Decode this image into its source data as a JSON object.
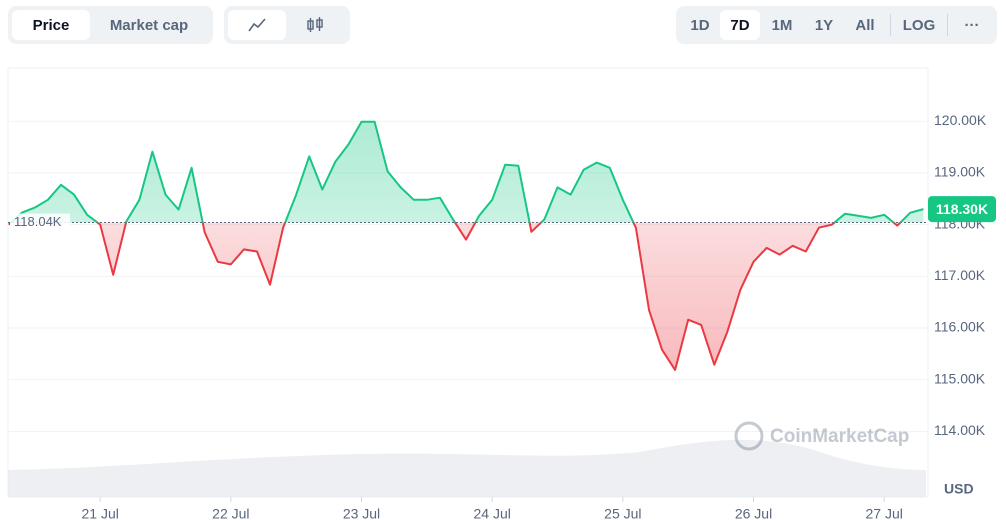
{
  "controls": {
    "tabs": [
      "Price",
      "Market cap"
    ],
    "ranges": [
      "1D",
      "7D",
      "1M",
      "1Y",
      "All"
    ],
    "log": "LOG",
    "more": "···"
  },
  "chart_data": {
    "type": "line",
    "x": [
      20.3,
      20.4,
      20.5,
      20.6,
      20.7,
      20.8,
      20.9,
      21.0,
      21.1,
      21.2,
      21.3,
      21.4,
      21.5,
      21.6,
      21.7,
      21.8,
      21.9,
      22.0,
      22.1,
      22.2,
      22.3,
      22.4,
      22.5,
      22.6,
      22.7,
      22.8,
      22.9,
      23.0,
      23.1,
      23.2,
      23.3,
      23.4,
      23.5,
      23.6,
      23.7,
      23.8,
      23.9,
      24.0,
      24.1,
      24.2,
      24.3,
      24.4,
      24.5,
      24.6,
      24.7,
      24.8,
      24.9,
      25.0,
      25.1,
      25.2,
      25.3,
      25.4,
      25.5,
      25.6,
      25.7,
      25.8,
      25.9,
      26.0,
      26.1,
      26.2,
      26.3,
      26.4,
      26.5,
      26.6,
      26.7,
      26.8,
      26.9,
      27.0,
      27.1,
      27.2,
      27.3
    ],
    "values": [
      118000,
      118230,
      118330,
      118480,
      118770,
      118580,
      118190,
      118000,
      117030,
      118060,
      118480,
      119410,
      118580,
      118290,
      119100,
      117850,
      117280,
      117230,
      117520,
      117480,
      116840,
      117940,
      118580,
      119320,
      118680,
      119220,
      119550,
      119990,
      119990,
      119030,
      118720,
      118480,
      118480,
      118520,
      118100,
      117710,
      118170,
      118480,
      119160,
      119140,
      117860,
      118100,
      118720,
      118580,
      119060,
      119200,
      119100,
      118480,
      117940,
      116350,
      115580,
      115190,
      116160,
      116060,
      115290,
      115930,
      116740,
      117280,
      117550,
      117420,
      117590,
      117480,
      117940,
      118000,
      118210,
      118170,
      118130,
      118190,
      117980,
      118230,
      118300
    ],
    "up_color": "#16c784",
    "down_color": "#ea3943",
    "baseline": {
      "value": 118040,
      "label": "118.04K"
    },
    "current": {
      "value": 118300,
      "label": "118.30K"
    },
    "xlim": [
      20.3,
      27.32
    ],
    "xticks": [
      {
        "value": 21,
        "label": "21 Jul"
      },
      {
        "value": 22,
        "label": "22 Jul"
      },
      {
        "value": 23,
        "label": "23 Jul"
      },
      {
        "value": 24,
        "label": "24 Jul"
      },
      {
        "value": 25,
        "label": "25 Jul"
      },
      {
        "value": 26,
        "label": "26 Jul"
      },
      {
        "value": 27,
        "label": "27 Jul"
      }
    ],
    "ylim": [
      112730,
      121030
    ],
    "yticks": [
      {
        "value": 114000,
        "label": "114.00K"
      },
      {
        "value": 115000,
        "label": "115.00K"
      },
      {
        "value": 116000,
        "label": "116.00K"
      },
      {
        "value": 117000,
        "label": "117.00K"
      },
      {
        "value": 118000,
        "label": "118.00K"
      },
      {
        "value": 119000,
        "label": "119.00K"
      },
      {
        "value": 120000,
        "label": "120.00K"
      }
    ],
    "y_unit": "USD",
    "watermark": "CoinMarketCap",
    "grid": true
  }
}
